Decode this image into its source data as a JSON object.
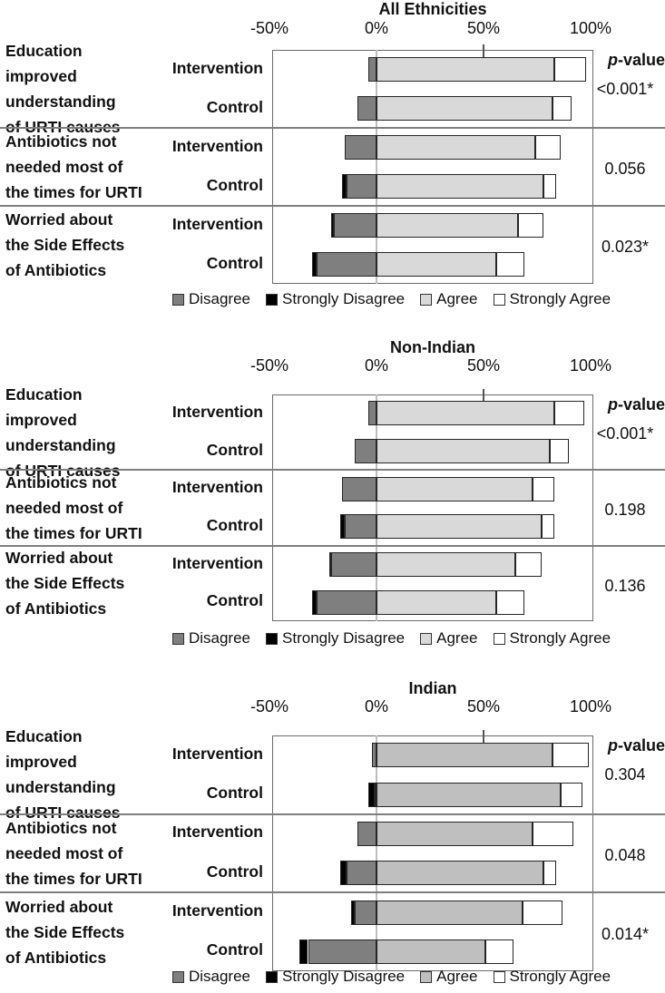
{
  "chart_data": [
    {
      "type": "bar",
      "subtype": "diverging-stacked-likert",
      "title": "All Ethnicities",
      "p_value_header": {
        "italic": "p",
        "rest": "-value"
      },
      "x_ticks": [
        {
          "label": "-50%",
          "value": -50
        },
        {
          "label": "0%",
          "value": 0
        },
        {
          "label": "50%",
          "value": 50
        },
        {
          "label": "100%",
          "value": 100
        }
      ],
      "x_range_pct": [
        -49,
        101
      ],
      "colors": {
        "disagree": "#7f7f7f",
        "strongly_disagree": "#000000",
        "agree": "#d9d9d9",
        "strongly_agree": "#ffffff"
      },
      "legend": [
        {
          "key": "disagree",
          "label": "Disagree"
        },
        {
          "key": "strongly_disagree",
          "label": "Strongly Disagree"
        },
        {
          "key": "agree",
          "label": "Agree"
        },
        {
          "key": "strongly_agree",
          "label": "Strongly Agree"
        }
      ],
      "groups": [
        {
          "question_lines": [
            "Education",
            "improved",
            "understanding",
            "of URTI causes"
          ],
          "p_value": "<0.001*",
          "rows": [
            {
              "label": "Intervention",
              "values": {
                "strongly_disagree": 0,
                "disagree": 4,
                "agree": 83,
                "strongly_agree": 15
              }
            },
            {
              "label": "Control",
              "values": {
                "strongly_disagree": 0,
                "disagree": 9,
                "agree": 82,
                "strongly_agree": 9
              }
            }
          ]
        },
        {
          "question_lines": [
            "Antibiotics not",
            "needed most of",
            "the times for URTI"
          ],
          "p_value": "0.056",
          "rows": [
            {
              "label": "Intervention",
              "values": {
                "strongly_disagree": 0,
                "disagree": 15,
                "agree": 74,
                "strongly_agree": 12
              }
            },
            {
              "label": "Control",
              "values": {
                "strongly_disagree": 2,
                "disagree": 14,
                "agree": 78,
                "strongly_agree": 6
              }
            }
          ]
        },
        {
          "question_lines": [
            "Worried about",
            "the Side Effects",
            "of Antibiotics"
          ],
          "p_value": "0.023*",
          "rows": [
            {
              "label": "Intervention",
              "values": {
                "strongly_disagree": 1,
                "disagree": 20,
                "agree": 66,
                "strongly_agree": 12
              }
            },
            {
              "label": "Control",
              "values": {
                "strongly_disagree": 2,
                "disagree": 28,
                "agree": 56,
                "strongly_agree": 13
              }
            }
          ]
        }
      ]
    },
    {
      "type": "bar",
      "subtype": "diverging-stacked-likert",
      "title": "Non-Indian",
      "p_value_header": {
        "italic": "p",
        "rest": "-value"
      },
      "x_ticks": [
        {
          "label": "-50%",
          "value": -50
        },
        {
          "label": "0%",
          "value": 0
        },
        {
          "label": "50%",
          "value": 50
        },
        {
          "label": "100%",
          "value": 100
        }
      ],
      "x_range_pct": [
        -49,
        101
      ],
      "colors": {
        "disagree": "#7f7f7f",
        "strongly_disagree": "#000000",
        "agree": "#d9d9d9",
        "strongly_agree": "#ffffff"
      },
      "legend": [
        {
          "key": "disagree",
          "label": "Disagree"
        },
        {
          "key": "strongly_disagree",
          "label": "Strongly Disagree"
        },
        {
          "key": "agree",
          "label": "Agree"
        },
        {
          "key": "strongly_agree",
          "label": "Strongly Agree"
        }
      ],
      "groups": [
        {
          "question_lines": [
            "Education",
            "improved",
            "understanding",
            "of URTI causes"
          ],
          "p_value": "<0.001*",
          "rows": [
            {
              "label": "Intervention",
              "values": {
                "strongly_disagree": 0,
                "disagree": 4,
                "agree": 83,
                "strongly_agree": 14
              }
            },
            {
              "label": "Control",
              "values": {
                "strongly_disagree": 0,
                "disagree": 10,
                "agree": 81,
                "strongly_agree": 9
              }
            }
          ]
        },
        {
          "question_lines": [
            "Antibiotics not",
            "needed most of",
            "the times for URTI"
          ],
          "p_value": "0.198",
          "rows": [
            {
              "label": "Intervention",
              "values": {
                "strongly_disagree": 0,
                "disagree": 16,
                "agree": 73,
                "strongly_agree": 10
              }
            },
            {
              "label": "Control",
              "values": {
                "strongly_disagree": 2,
                "disagree": 15,
                "agree": 77,
                "strongly_agree": 6
              }
            }
          ]
        },
        {
          "question_lines": [
            "Worried about",
            "the Side Effects",
            "of Antibiotics"
          ],
          "p_value": "0.136",
          "rows": [
            {
              "label": "Intervention",
              "values": {
                "strongly_disagree": 1,
                "disagree": 21,
                "agree": 65,
                "strongly_agree": 12
              }
            },
            {
              "label": "Control",
              "values": {
                "strongly_disagree": 2,
                "disagree": 28,
                "agree": 56,
                "strongly_agree": 13
              }
            }
          ]
        }
      ]
    },
    {
      "type": "bar",
      "subtype": "diverging-stacked-likert",
      "title": "Indian",
      "p_value_header": {
        "italic": "p",
        "rest": "-value"
      },
      "x_ticks": [
        {
          "label": "-50%",
          "value": -50
        },
        {
          "label": "0%",
          "value": 0
        },
        {
          "label": "50%",
          "value": 50
        },
        {
          "label": "100%",
          "value": 100
        }
      ],
      "x_range_pct": [
        -49,
        101
      ],
      "colors": {
        "disagree": "#7f7f7f",
        "strongly_disagree": "#000000",
        "agree": "#bfbfbf",
        "strongly_agree": "#ffffff"
      },
      "legend": [
        {
          "key": "disagree",
          "label": "Disagree"
        },
        {
          "key": "strongly_disagree",
          "label": "Strongly Disagree"
        },
        {
          "key": "agree",
          "label": "Agree"
        },
        {
          "key": "strongly_agree",
          "label": "Strongly Agree"
        }
      ],
      "groups": [
        {
          "question_lines": [
            "Education",
            "improved",
            "understanding",
            "of URTI causes"
          ],
          "p_value": "0.304",
          "rows": [
            {
              "label": "Intervention",
              "values": {
                "strongly_disagree": 0,
                "disagree": 2,
                "agree": 82,
                "strongly_agree": 17
              }
            },
            {
              "label": "Control",
              "values": {
                "strongly_disagree": 3,
                "disagree": 1,
                "agree": 86,
                "strongly_agree": 10
              }
            }
          ]
        },
        {
          "question_lines": [
            "Antibiotics not",
            "needed most of",
            "the times for URTI"
          ],
          "p_value": "0.048",
          "rows": [
            {
              "label": "Intervention",
              "values": {
                "strongly_disagree": 0,
                "disagree": 9,
                "agree": 73,
                "strongly_agree": 19
              }
            },
            {
              "label": "Control",
              "values": {
                "strongly_disagree": 3,
                "disagree": 14,
                "agree": 78,
                "strongly_agree": 6
              }
            }
          ]
        },
        {
          "question_lines": [
            "Worried about",
            "the Side Effects",
            "of Antibiotics"
          ],
          "p_value": "0.014*",
          "rows": [
            {
              "label": "Intervention",
              "values": {
                "strongly_disagree": 2,
                "disagree": 10,
                "agree": 68,
                "strongly_agree": 19
              }
            },
            {
              "label": "Control",
              "values": {
                "strongly_disagree": 4,
                "disagree": 32,
                "agree": 51,
                "strongly_agree": 13
              }
            }
          ]
        }
      ]
    }
  ]
}
